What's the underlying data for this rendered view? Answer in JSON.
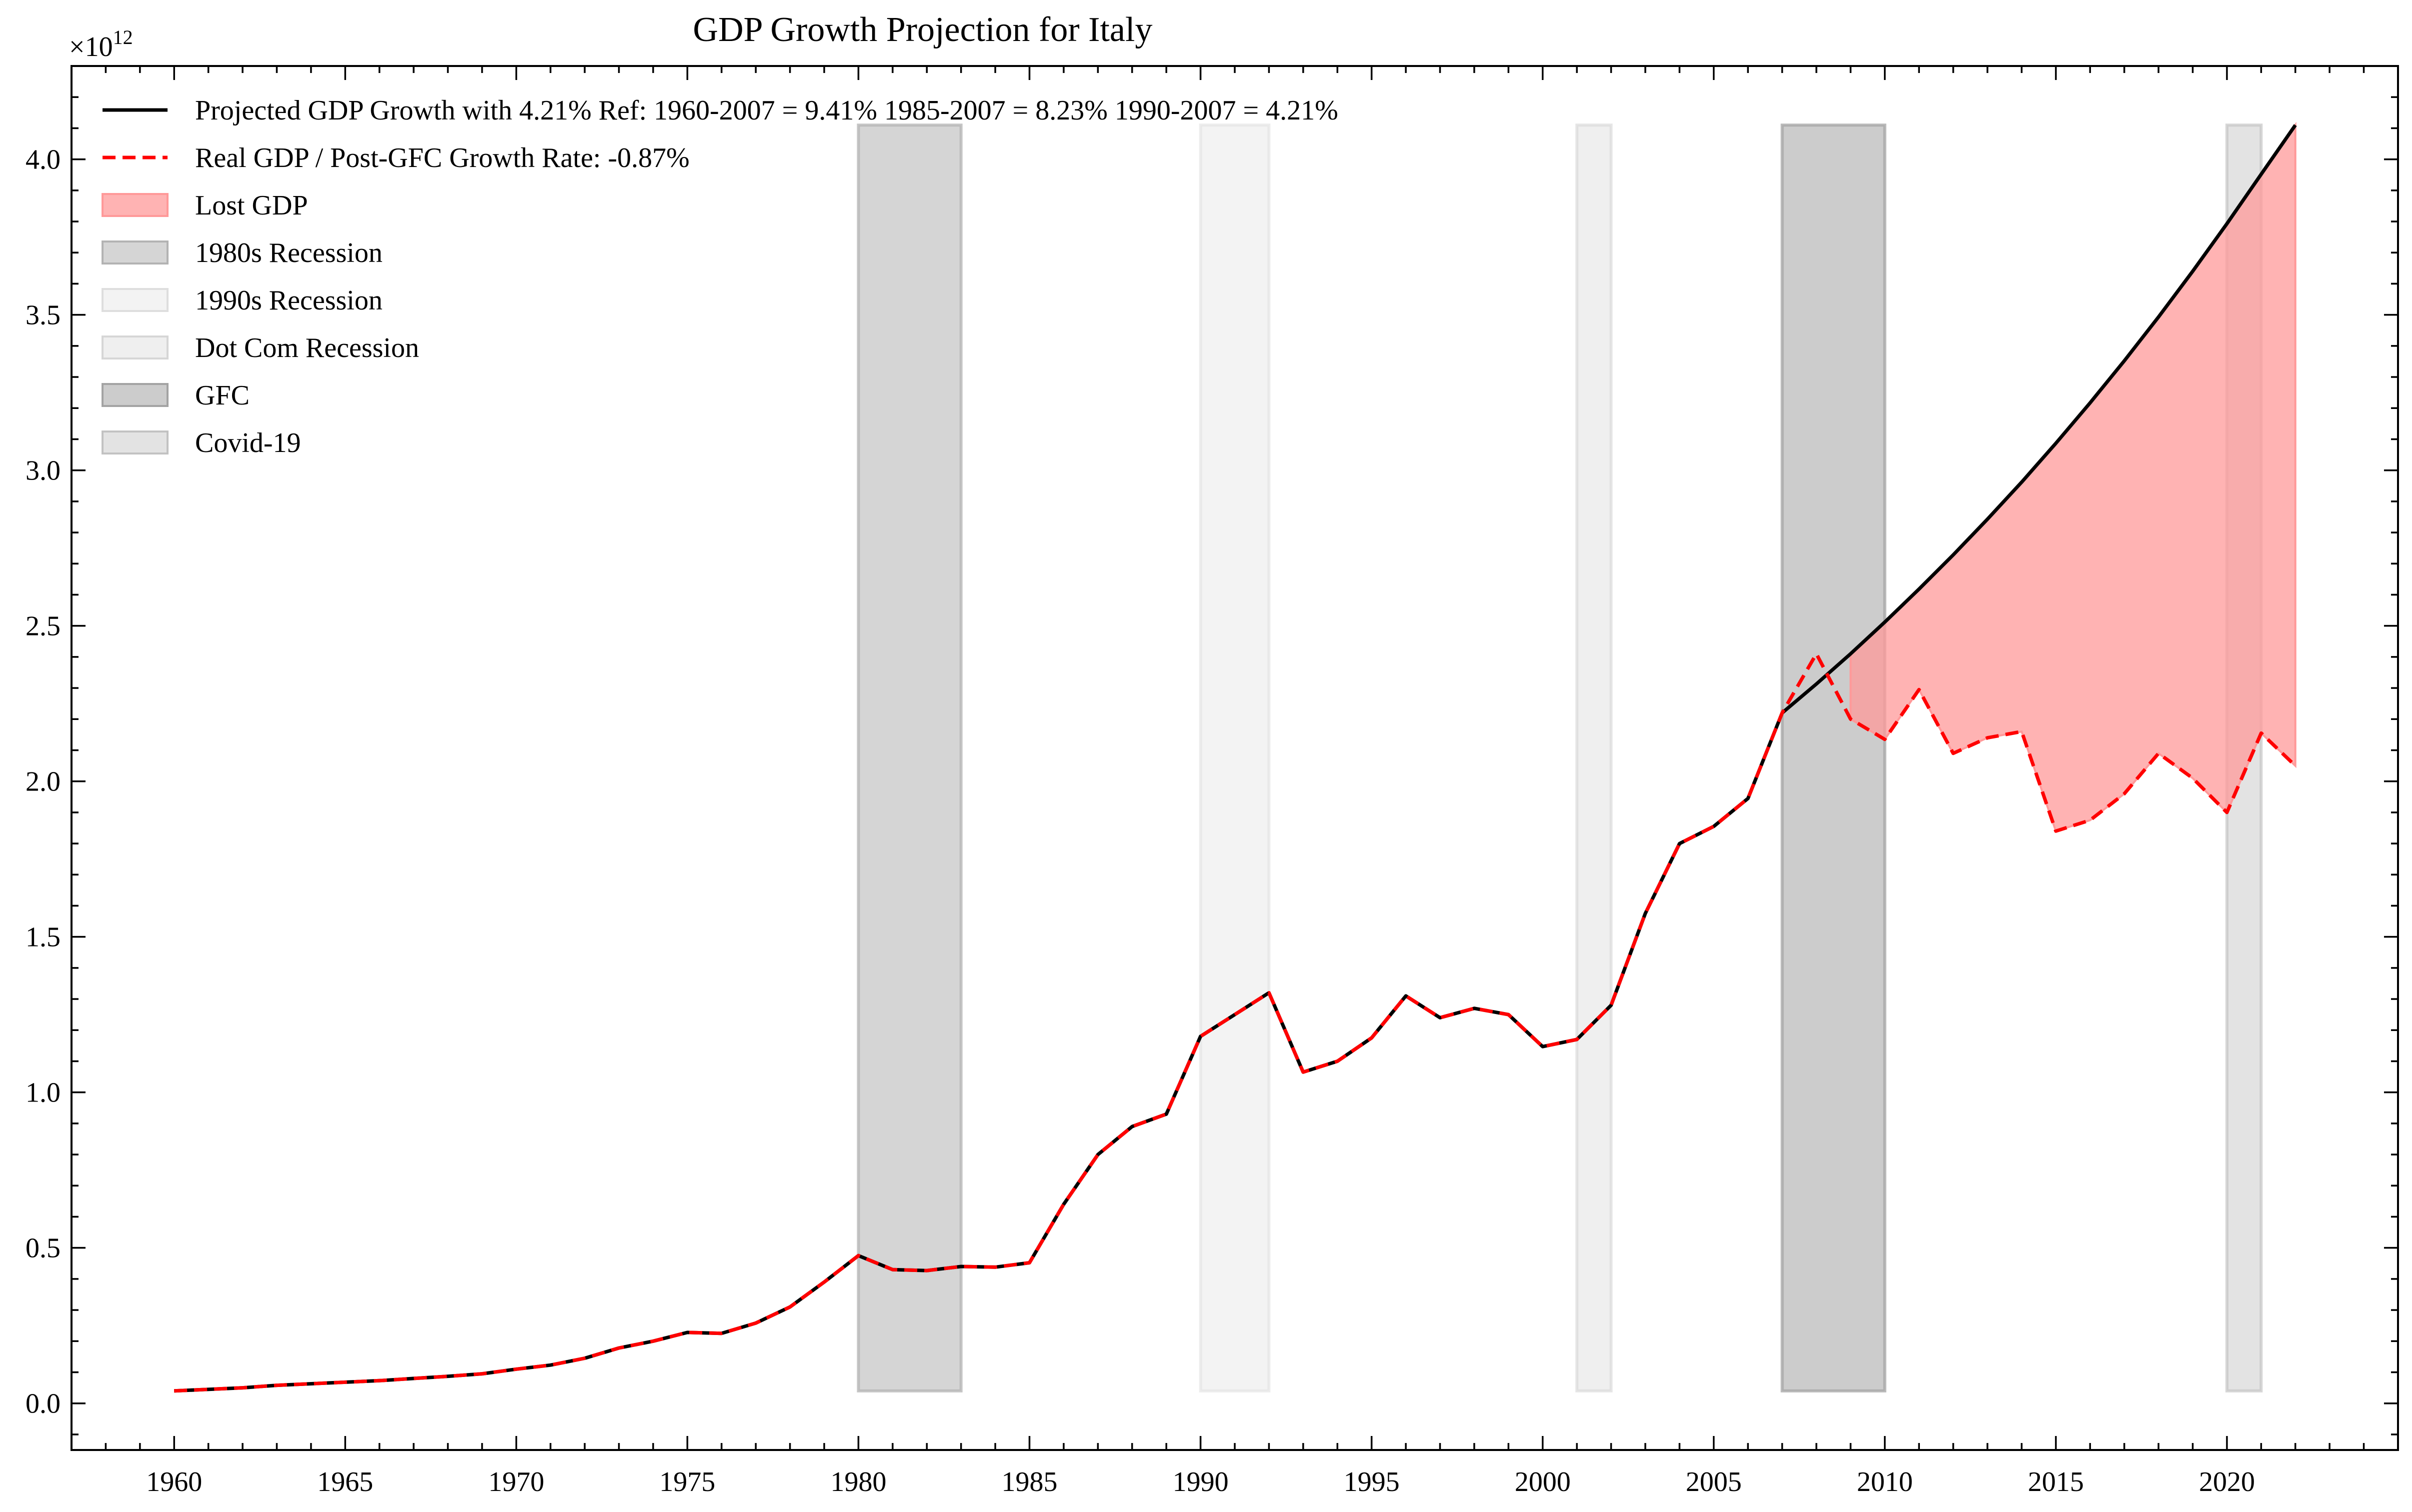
{
  "chart_data": {
    "type": "line",
    "title": "GDP Growth Projection for Italy",
    "xlabel": "",
    "ylabel": "",
    "y_multiplier_label": "×10",
    "y_multiplier_exponent": "12",
    "xlim": [
      1957,
      2025
    ],
    "ylim": [
      -0.15,
      4.3
    ],
    "y_scale": 1000000000000.0,
    "xticks": [
      1960,
      1965,
      1970,
      1975,
      1980,
      1985,
      1990,
      1995,
      2000,
      2005,
      2010,
      2015,
      2020
    ],
    "xtick_labels": [
      "1960",
      "1965",
      "1970",
      "1975",
      "1980",
      "1985",
      "1990",
      "1995",
      "2000",
      "2005",
      "2010",
      "2015",
      "2020"
    ],
    "yticks": [
      0.0,
      0.5,
      1.0,
      1.5,
      2.0,
      2.5,
      3.0,
      3.5,
      4.0
    ],
    "ytick_labels": [
      "0.0",
      "0.5",
      "1.0",
      "1.5",
      "2.0",
      "2.5",
      "3.0",
      "3.5",
      "4.0"
    ],
    "grid": false,
    "legend_position": "top-left",
    "series": [
      {
        "name": "Projected GDP Growth with 4.21% Ref: 1960-2007 = 9.41% 1985-2007 = 8.23% 1990-2007 = 4.21%",
        "style": "solid",
        "color": "#000000",
        "x": [
          1960,
          1961,
          1962,
          1963,
          1964,
          1965,
          1966,
          1967,
          1968,
          1969,
          1970,
          1971,
          1972,
          1973,
          1974,
          1975,
          1976,
          1977,
          1978,
          1979,
          1980,
          1981,
          1982,
          1983,
          1984,
          1985,
          1986,
          1987,
          1988,
          1989,
          1990,
          1991,
          1992,
          1993,
          1994,
          1995,
          1996,
          1997,
          1998,
          1999,
          2000,
          2001,
          2002,
          2003,
          2004,
          2005,
          2006,
          2007,
          2008,
          2009,
          2010,
          2011,
          2012,
          2013,
          2014,
          2015,
          2016,
          2017,
          2018,
          2019,
          2020,
          2021,
          2022
        ],
        "values": [
          0.04,
          0.045,
          0.05,
          0.058,
          0.063,
          0.068,
          0.073,
          0.08,
          0.087,
          0.095,
          0.11,
          0.123,
          0.145,
          0.178,
          0.2,
          0.228,
          0.225,
          0.258,
          0.31,
          0.39,
          0.475,
          0.43,
          0.427,
          0.44,
          0.438,
          0.452,
          0.64,
          0.8,
          0.89,
          0.93,
          1.18,
          1.25,
          1.32,
          1.065,
          1.1,
          1.175,
          1.31,
          1.24,
          1.27,
          1.25,
          1.147,
          1.17,
          1.28,
          1.575,
          1.8,
          1.855,
          1.945,
          2.22,
          2.313,
          2.41,
          2.512,
          2.618,
          2.728,
          2.843,
          2.962,
          3.087,
          3.217,
          3.352,
          3.493,
          3.64,
          3.793,
          3.952,
          4.11
        ]
      },
      {
        "name": "Real GDP / Post-GFC Growth Rate: -0.87%",
        "style": "dashed",
        "color": "#ff0000",
        "x": [
          1960,
          1961,
          1962,
          1963,
          1964,
          1965,
          1966,
          1967,
          1968,
          1969,
          1970,
          1971,
          1972,
          1973,
          1974,
          1975,
          1976,
          1977,
          1978,
          1979,
          1980,
          1981,
          1982,
          1983,
          1984,
          1985,
          1986,
          1987,
          1988,
          1989,
          1990,
          1991,
          1992,
          1993,
          1994,
          1995,
          1996,
          1997,
          1998,
          1999,
          2000,
          2001,
          2002,
          2003,
          2004,
          2005,
          2006,
          2007,
          2008,
          2009,
          2010,
          2011,
          2012,
          2013,
          2014,
          2015,
          2016,
          2017,
          2018,
          2019,
          2020,
          2021,
          2022
        ],
        "values": [
          0.04,
          0.045,
          0.05,
          0.058,
          0.063,
          0.068,
          0.073,
          0.08,
          0.087,
          0.095,
          0.11,
          0.123,
          0.145,
          0.178,
          0.2,
          0.228,
          0.225,
          0.258,
          0.31,
          0.39,
          0.475,
          0.43,
          0.427,
          0.44,
          0.438,
          0.452,
          0.64,
          0.8,
          0.89,
          0.93,
          1.18,
          1.25,
          1.32,
          1.065,
          1.1,
          1.175,
          1.31,
          1.24,
          1.27,
          1.25,
          1.147,
          1.17,
          1.28,
          1.575,
          1.8,
          1.855,
          1.945,
          2.22,
          2.41,
          2.2,
          2.135,
          2.295,
          2.09,
          2.14,
          2.16,
          1.84,
          1.875,
          1.96,
          2.09,
          2.01,
          1.9,
          2.155,
          2.05
        ]
      }
    ],
    "fill": {
      "name": "Lost GDP",
      "color": "#ff9999",
      "between": [
        "Projected GDP Growth with 4.21% Ref: 1960-2007 = 9.41% 1985-2007 = 8.23% 1990-2007 = 4.21%",
        "Real GDP / Post-GFC Growth Rate: -0.87%"
      ],
      "x_range": [
        2009,
        2022
      ]
    },
    "recessions": [
      {
        "name": "1980s Recession",
        "start": 1980,
        "end": 1983,
        "color": "#b3b3b3",
        "opacity": 0.55
      },
      {
        "name": "1990s Recession",
        "start": 1990,
        "end": 1992,
        "color": "#dedede",
        "opacity": 0.35
      },
      {
        "name": "Dot Com Recession",
        "start": 2001,
        "end": 2002,
        "color": "#d6d6d6",
        "opacity": 0.4
      },
      {
        "name": "GFC",
        "start": 2007,
        "end": 2010,
        "color": "#a3a3a3",
        "opacity": 0.55
      },
      {
        "name": "Covid-19",
        "start": 2020,
        "end": 2021,
        "color": "#c2c2c2",
        "opacity": 0.45
      }
    ],
    "recession_y_range": [
      0.04,
      4.11
    ]
  }
}
